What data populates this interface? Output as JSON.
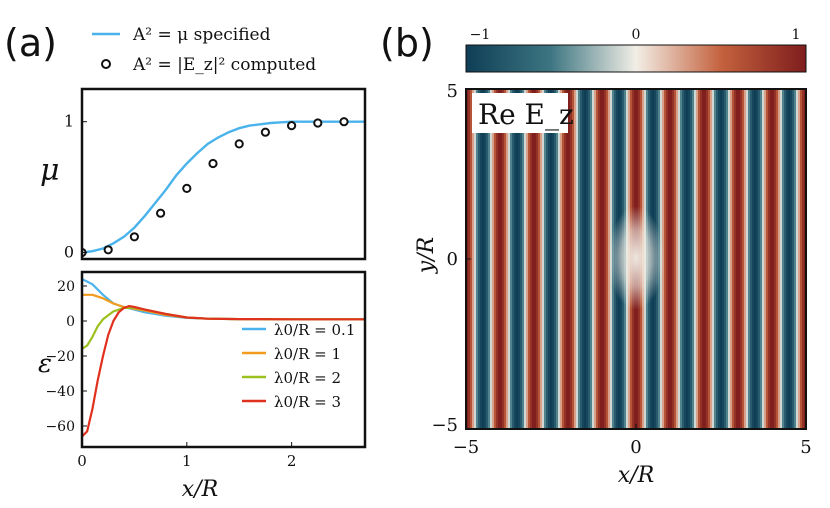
{
  "figure": {
    "panel_a_label": "(a)",
    "panel_b_label": "(b)"
  },
  "chart_data": [
    {
      "type": "line",
      "panel": "a-top",
      "ylabel": "μ",
      "xlim": [
        0,
        2.7
      ],
      "ylim": [
        -0.05,
        1.25
      ],
      "yticks": [
        {
          "v": 0,
          "label": "0"
        },
        {
          "v": 1,
          "label": "1"
        }
      ],
      "legend": {
        "location": "top",
        "items": [
          {
            "label": "A² = μ specified",
            "style": "line",
            "color": "#4bb3ec"
          },
          {
            "label": "A² = |E_z|² computed",
            "style": "marker",
            "color": "#111111"
          }
        ]
      },
      "series": [
        {
          "name": "A² = μ specified",
          "kind": "line",
          "color": "#4bb3ec",
          "x": [
            0,
            0.1,
            0.2,
            0.3,
            0.4,
            0.5,
            0.6,
            0.7,
            0.8,
            0.9,
            1.0,
            1.1,
            1.2,
            1.3,
            1.4,
            1.5,
            1.6,
            1.7,
            1.8,
            1.9,
            2.0,
            2.2,
            2.4,
            2.7
          ],
          "y": [
            0.0,
            0.01,
            0.03,
            0.07,
            0.12,
            0.19,
            0.28,
            0.38,
            0.48,
            0.59,
            0.68,
            0.76,
            0.83,
            0.88,
            0.92,
            0.95,
            0.97,
            0.98,
            0.99,
            0.995,
            1.0,
            1.0,
            1.0,
            1.0
          ]
        },
        {
          "name": "A² = |E_z|² computed",
          "kind": "scatter",
          "color": "#111111",
          "x": [
            0,
            0.25,
            0.5,
            0.75,
            1.0,
            1.25,
            1.5,
            1.75,
            2.0,
            2.25,
            2.5
          ],
          "y": [
            0.0,
            0.02,
            0.12,
            0.3,
            0.49,
            0.68,
            0.83,
            0.92,
            0.97,
            0.99,
            1.0
          ]
        }
      ]
    },
    {
      "type": "line",
      "panel": "a-bottom",
      "xlabel": "x/R",
      "ylabel": "ε",
      "xlim": [
        0,
        2.7
      ],
      "ylim": [
        -72,
        28
      ],
      "xticks": [
        {
          "v": 0,
          "label": "0"
        },
        {
          "v": 1,
          "label": "1"
        },
        {
          "v": 2,
          "label": "2"
        }
      ],
      "yticks": [
        {
          "v": 20,
          "label": "20"
        },
        {
          "v": 0,
          "label": "0"
        },
        {
          "v": -20,
          "label": "−20"
        },
        {
          "v": -40,
          "label": "−40"
        },
        {
          "v": -60,
          "label": "−60"
        }
      ],
      "legend": {
        "location": "right"
      },
      "series": [
        {
          "name": "λ0/R = 0.1",
          "color": "#4bb3ec",
          "x": [
            0,
            0.1,
            0.2,
            0.3,
            0.4,
            0.5,
            0.6,
            0.8,
            1.0,
            1.2,
            1.5,
            2.0,
            2.7
          ],
          "y": [
            24,
            21,
            15,
            10,
            8,
            6.5,
            5,
            3,
            1.8,
            1.3,
            1.1,
            1,
            1
          ]
        },
        {
          "name": "λ0/R = 1",
          "color": "#f29b1d",
          "x": [
            0,
            0.1,
            0.2,
            0.3,
            0.4,
            0.5,
            0.6,
            0.8,
            1.0,
            1.2,
            1.5,
            2.0,
            2.7
          ],
          "y": [
            15,
            15,
            13,
            10,
            8,
            7,
            6,
            3.5,
            2,
            1.3,
            1.1,
            1,
            1
          ]
        },
        {
          "name": "λ0/R = 2",
          "color": "#9cc11f",
          "x": [
            0,
            0.05,
            0.1,
            0.15,
            0.2,
            0.3,
            0.4,
            0.5,
            0.6,
            0.8,
            1.0,
            1.2,
            1.5,
            2.0,
            2.7
          ],
          "y": [
            -16,
            -14,
            -9,
            -3,
            1,
            5.5,
            7.5,
            7.5,
            6.5,
            4,
            2,
            1.3,
            1.1,
            1,
            1
          ]
        },
        {
          "name": "λ0/R = 3",
          "color": "#e0301e",
          "x": [
            0,
            0.05,
            0.1,
            0.15,
            0.2,
            0.25,
            0.3,
            0.35,
            0.4,
            0.45,
            0.5,
            0.6,
            0.8,
            1.0,
            1.2,
            1.5,
            2.0,
            2.7
          ],
          "y": [
            -66,
            -63,
            -50,
            -34,
            -20,
            -8,
            0,
            5,
            7.5,
            8.5,
            8,
            6.5,
            4,
            2,
            1.3,
            1.1,
            1,
            1
          ]
        }
      ]
    },
    {
      "type": "heatmap",
      "panel": "b",
      "title": "Re E_z",
      "xlabel": "x/R",
      "ylabel": "y/R",
      "xlim": [
        -5,
        5
      ],
      "ylim": [
        -5,
        5
      ],
      "xticks": [
        {
          "v": -5,
          "label": "−5"
        },
        {
          "v": 0,
          "label": "0"
        },
        {
          "v": 5,
          "label": "5"
        }
      ],
      "yticks": [
        {
          "v": 5,
          "label": "5"
        },
        {
          "v": 0,
          "label": "0"
        },
        {
          "v": -5,
          "label": "−5"
        }
      ],
      "colorbar": {
        "min": -1,
        "max": 1,
        "ticks": [
          {
            "v": -1,
            "label": "−1"
          },
          {
            "v": 0,
            "label": "0"
          },
          {
            "v": 1,
            "label": "1"
          }
        ],
        "stops": [
          "#0f3e56",
          "#3d7682",
          "#f2eee6",
          "#c4623e",
          "#7e1d1d"
        ]
      },
      "field": {
        "wavelength_over_R": 1.0,
        "gaussian_center": [
          0,
          0
        ],
        "gaussian_sigma_x": 0.35,
        "gaussian_sigma_y": 0.5
      }
    }
  ]
}
